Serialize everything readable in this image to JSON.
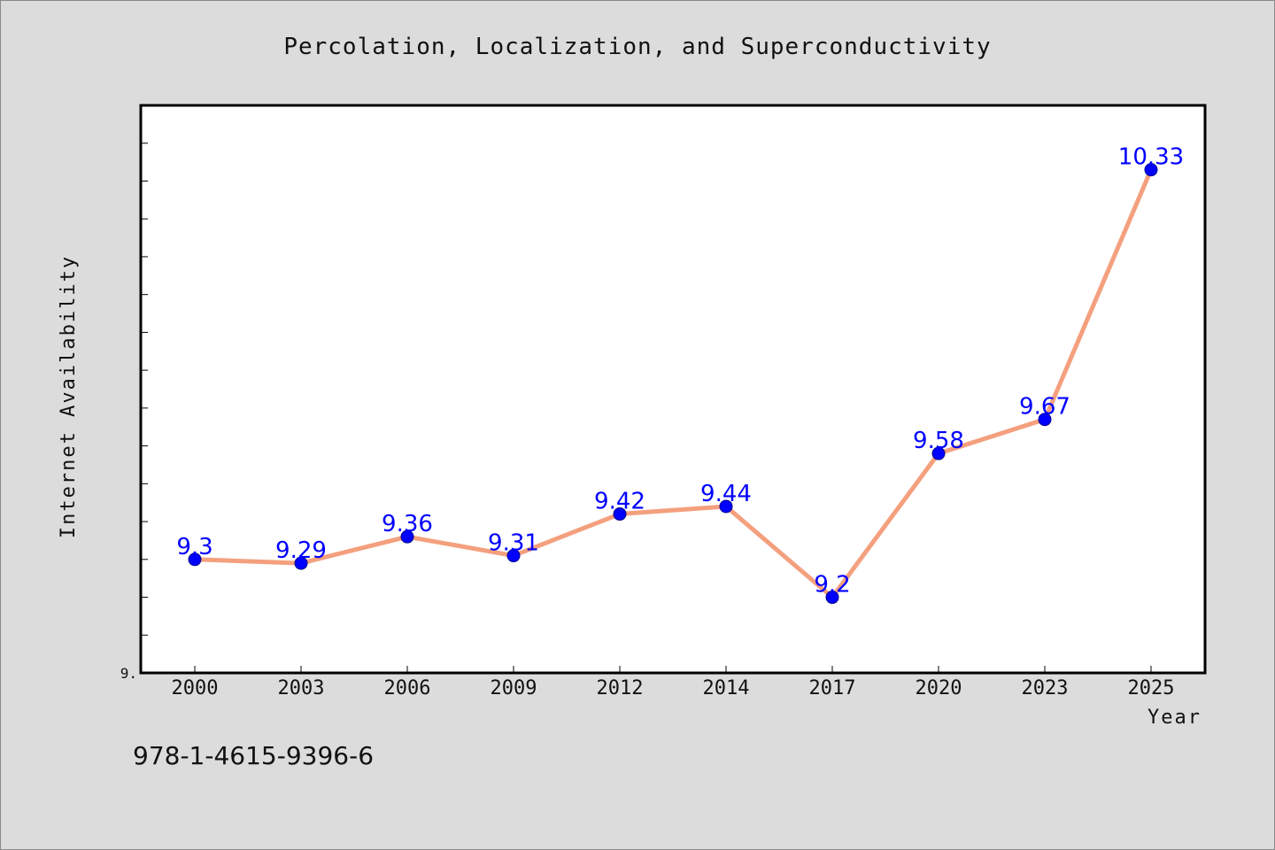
{
  "chart_data": {
    "type": "line",
    "title": "Percolation, Localization, and Superconductivity",
    "xlabel": "Year",
    "ylabel": "Internet Availability",
    "categories": [
      "2000",
      "2003",
      "2006",
      "2009",
      "2012",
      "2014",
      "2017",
      "2020",
      "2023",
      "2025"
    ],
    "series": [
      {
        "values": [
          9.3,
          9.29,
          9.36,
          9.31,
          9.42,
          9.44,
          9.2,
          9.58,
          9.67,
          10.33
        ],
        "labels": [
          "9.3",
          "9.29",
          "9.36",
          "9.31",
          "9.42",
          "9.44",
          "9.2",
          "9.58",
          "9.67",
          "10.33"
        ]
      }
    ],
    "ylim": [
      9.0,
      10.5
    ],
    "y_tick_labels": [
      "9."
    ],
    "grid": false,
    "legend": "none",
    "colors": {
      "line": "#f4a07e",
      "marker": "#0000ff",
      "data_label": "#0000ff",
      "plot_background": "#ffffff",
      "figure_background": "#dcdcdc"
    }
  },
  "footer": {
    "isbn": "978-1-4615-9396-6"
  }
}
